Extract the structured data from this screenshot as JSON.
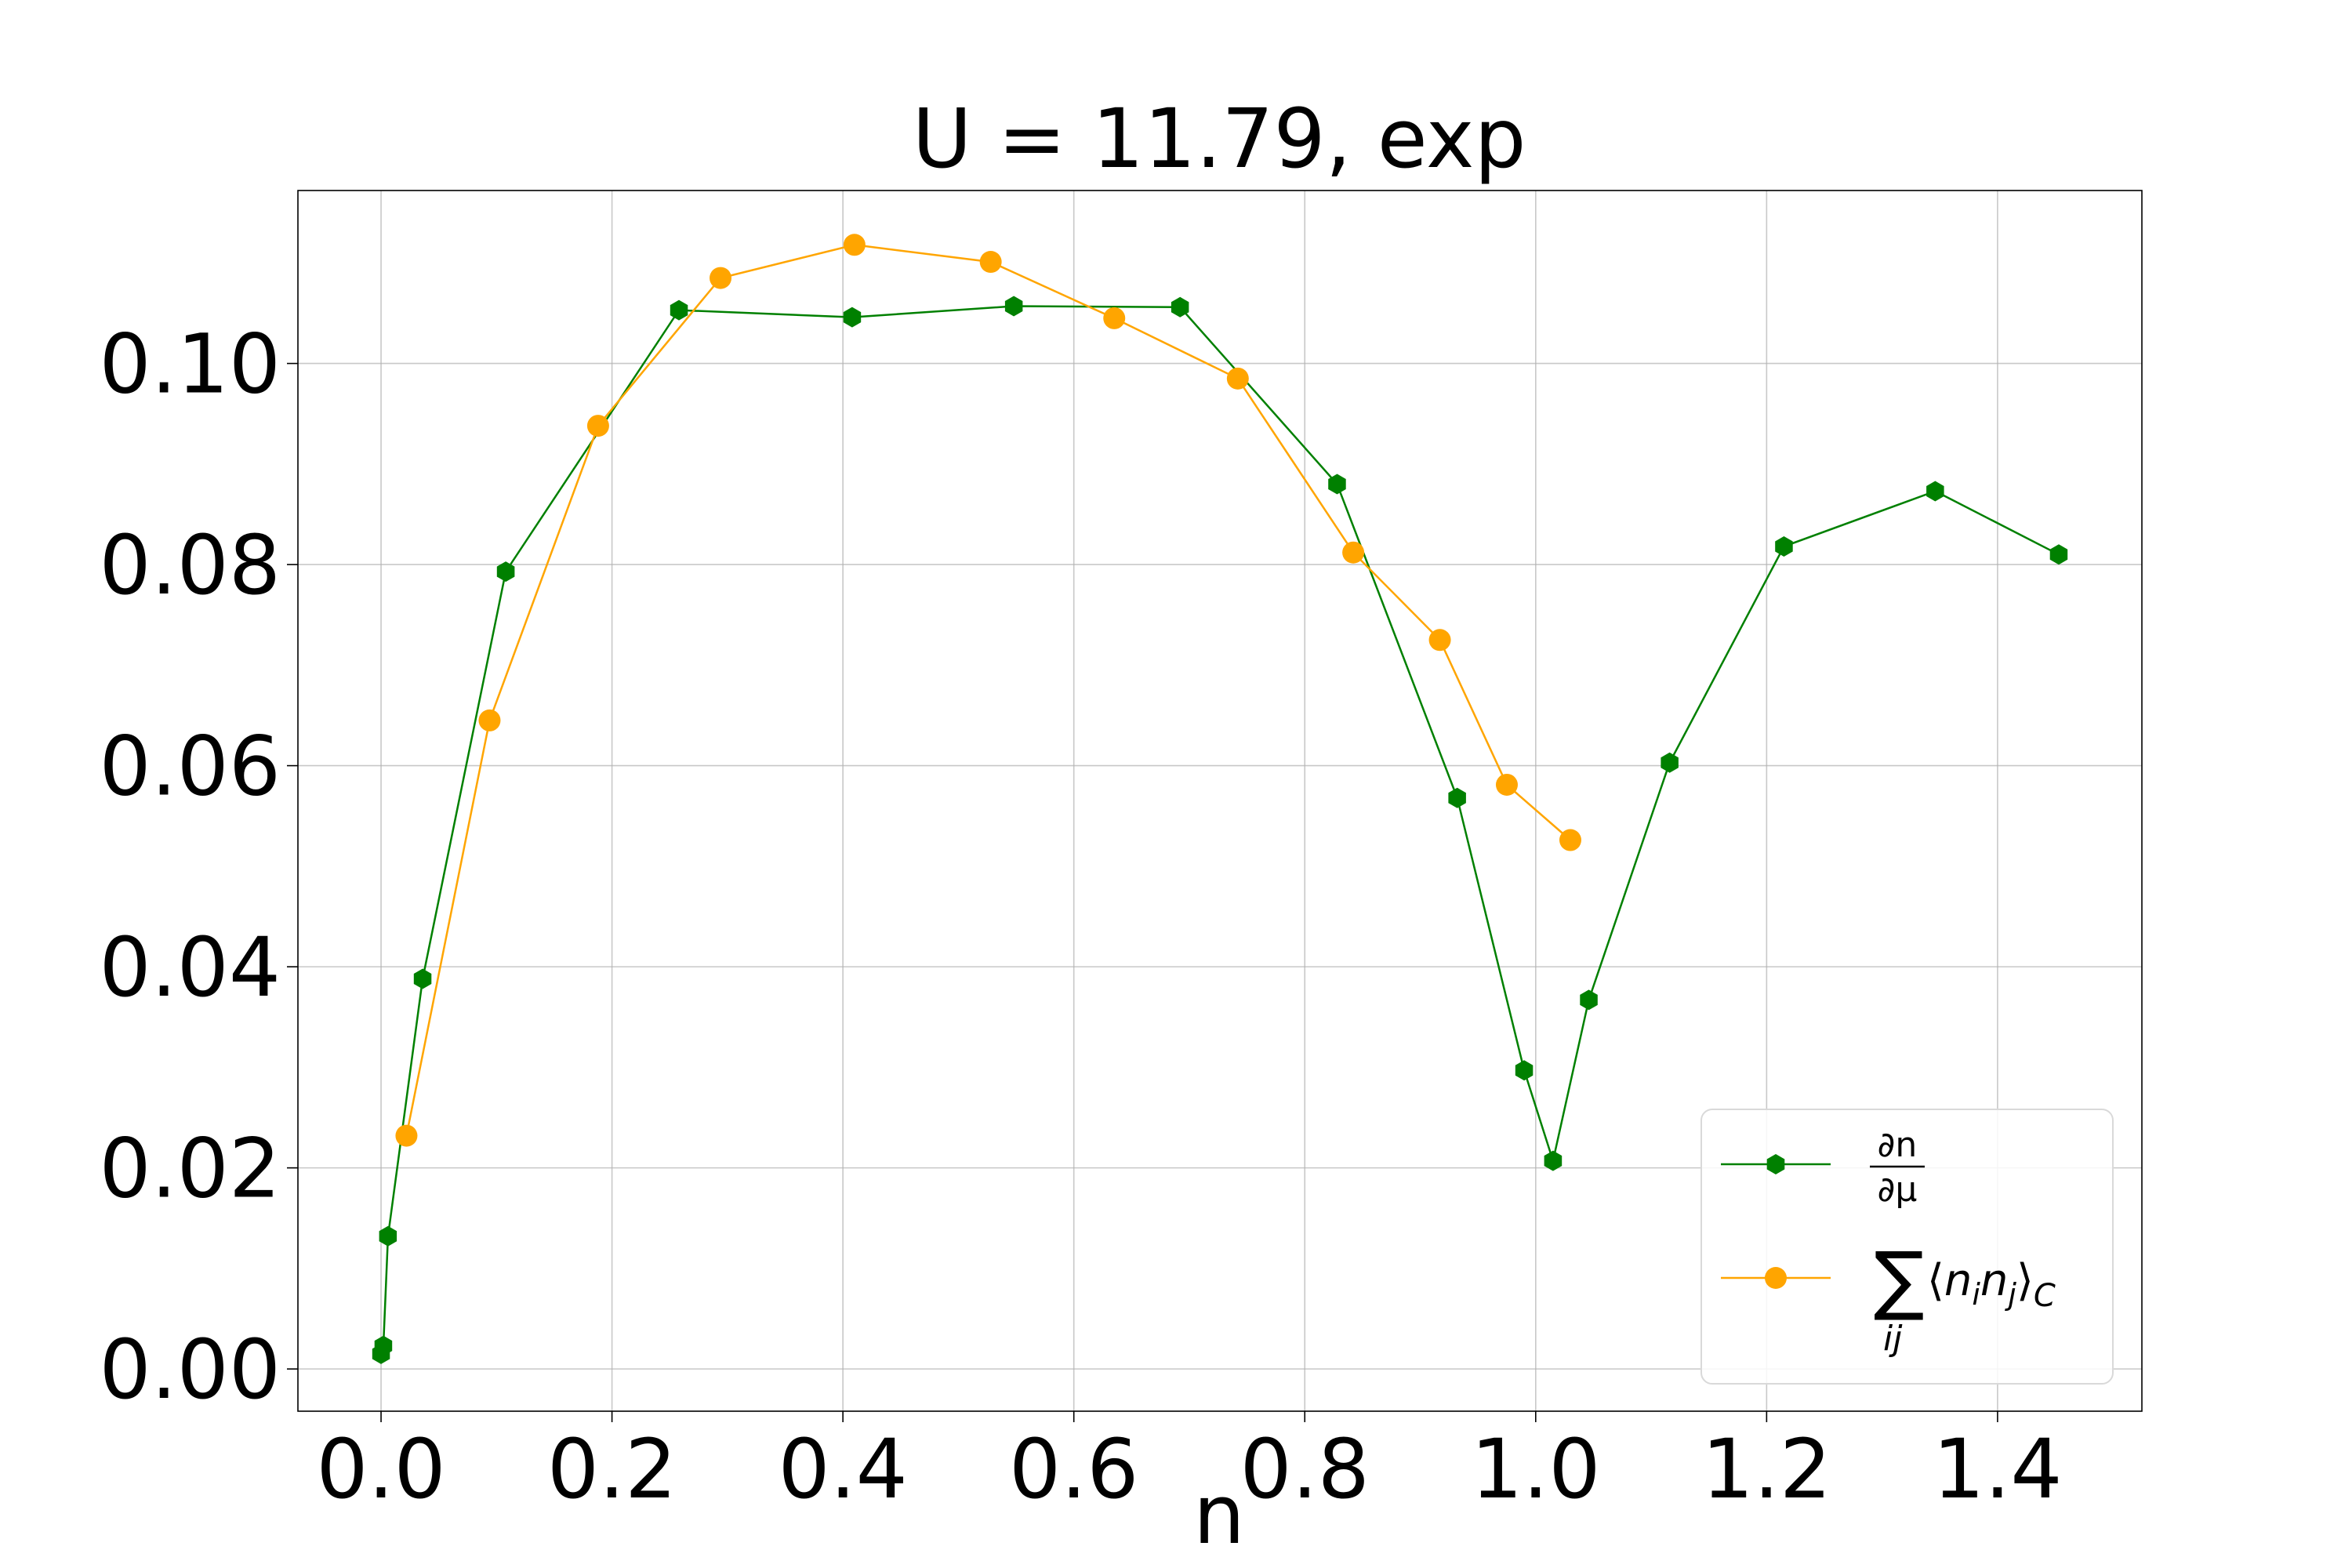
{
  "chart_data": {
    "type": "line",
    "title": "U = 11.79, exp",
    "xlabel": "n",
    "ylabel": "",
    "xlim": [
      -0.072,
      1.525
    ],
    "ylim": [
      -0.0042,
      0.1172
    ],
    "xticks": [
      "0.0",
      "0.2",
      "0.4",
      "0.6",
      "0.8",
      "1.0",
      "1.2",
      "1.4"
    ],
    "yticks": [
      "0.00",
      "0.02",
      "0.04",
      "0.06",
      "0.08",
      "0.10"
    ],
    "grid": true,
    "legend_position": "lower-right",
    "series": [
      {
        "name": "∂n/∂μ",
        "color": "#008000",
        "marker": "hexagon",
        "x": [
          0.0,
          0.002,
          0.006,
          0.036,
          0.108,
          0.258,
          0.408,
          0.548,
          0.692,
          0.828,
          0.932,
          0.99,
          1.015,
          1.046,
          1.116,
          1.215,
          1.346,
          1.453
        ],
        "y": [
          0.0015,
          0.0023,
          0.0132,
          0.0388,
          0.0793,
          0.1053,
          0.1046,
          0.1057,
          0.1056,
          0.088,
          0.0568,
          0.0297,
          0.0207,
          0.0367,
          0.0603,
          0.0818,
          0.0873,
          0.081
        ]
      },
      {
        "name": "∑ij⟨ninj⟩C",
        "color": "#ffa500",
        "marker": "circle",
        "x": [
          0.022,
          0.094,
          0.188,
          0.294,
          0.41,
          0.528,
          0.635,
          0.742,
          0.842,
          0.917,
          0.975,
          1.03
        ],
        "y": [
          0.0232,
          0.0645,
          0.0938,
          0.1085,
          0.1118,
          0.1101,
          0.1045,
          0.0985,
          0.0812,
          0.0725,
          0.0581,
          0.0526
        ]
      }
    ]
  }
}
